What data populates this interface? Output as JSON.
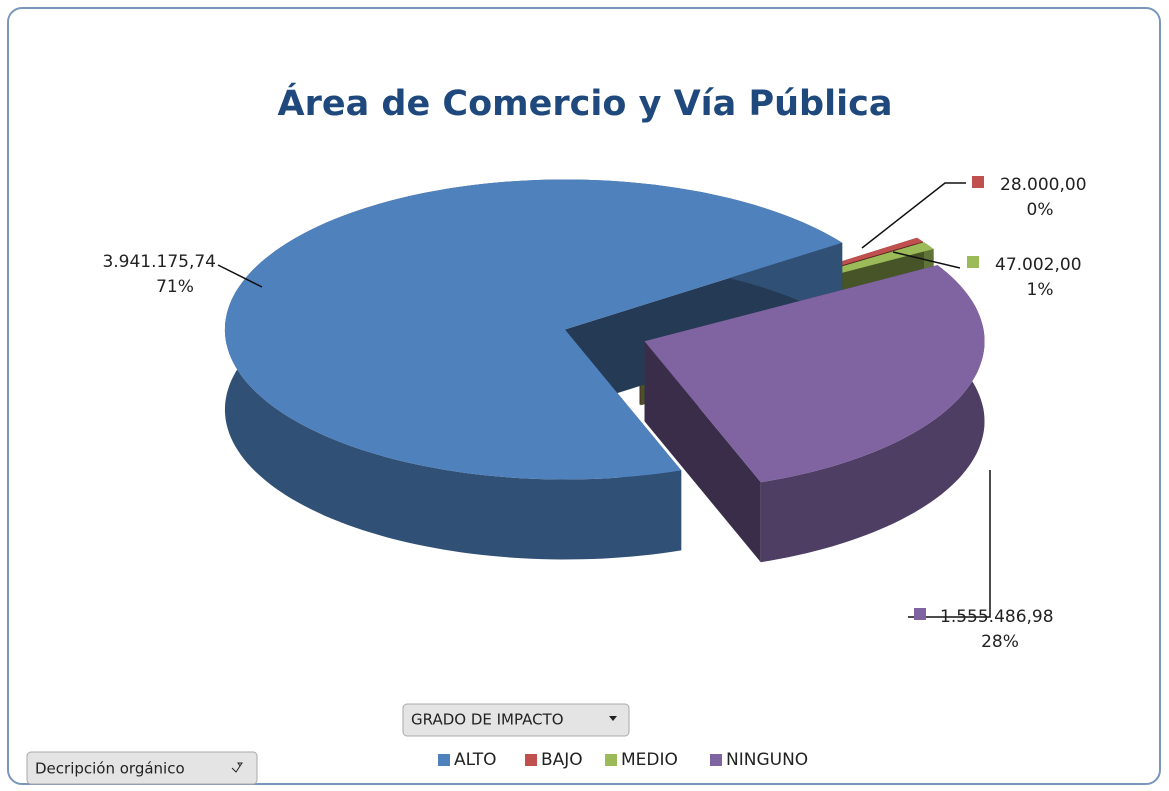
{
  "chart_data": {
    "type": "pie",
    "title": "Área de Comercio y Vía Pública",
    "categories": [
      "ALTO",
      "BAJO",
      "MEDIO",
      "NINGUNO"
    ],
    "values": [
      3941175.74,
      28000,
      47002,
      1555486.98
    ],
    "value_labels": [
      "3.941.175,74",
      "28.000,00",
      "47.002,00",
      "1.555.486,98"
    ],
    "percents": [
      71,
      0,
      1,
      28
    ],
    "percent_labels": [
      "71%",
      "0%",
      "1%",
      "28%"
    ],
    "colors": [
      "#4f81bd",
      "#c0504d",
      "#9bbb59",
      "#8064a2"
    ],
    "legend": "bottom",
    "legend_field": "GRADO DE IMPACTO",
    "filter_field": "Decripción orgánico"
  }
}
